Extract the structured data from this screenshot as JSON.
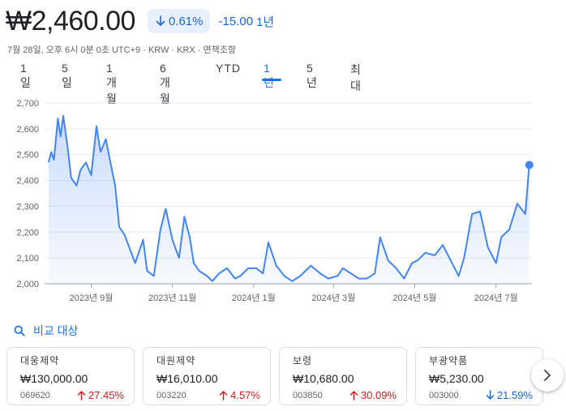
{
  "quote": {
    "price": "₩2,460.00",
    "change_percent": "0.61%",
    "change_direction": "down",
    "change_abs": "-15.00",
    "change_period": "1년",
    "meta": "7월 28일, 오후 6시 0분 0초 UTC+9 · KRW · KRX · 면책조항"
  },
  "tabs": [
    {
      "label": "1일",
      "active": false
    },
    {
      "label": "5일",
      "active": false
    },
    {
      "label": "1개월",
      "active": false
    },
    {
      "label": "6개월",
      "active": false
    },
    {
      "label": "YTD",
      "active": false
    },
    {
      "label": "1년",
      "active": true
    },
    {
      "label": "5년",
      "active": false
    },
    {
      "label": "최대",
      "active": false
    }
  ],
  "chart_data": {
    "type": "area",
    "ylim": [
      2000,
      2700
    ],
    "y_ticks": [
      "2,700",
      "2,600",
      "2,500",
      "2,400",
      "2,300",
      "2,200",
      "2,100",
      "2,000"
    ],
    "x_ticks": [
      "2023년 9월",
      "2023년 11월",
      "2024년 1월",
      "2024년 3월",
      "2024년 5월",
      "2024년 7월"
    ],
    "grid": true,
    "line_color": "#4285f4",
    "x": [
      "2023-07-31",
      "2023-08-02",
      "2023-08-04",
      "2023-08-07",
      "2023-08-09",
      "2023-08-11",
      "2023-08-14",
      "2023-08-17",
      "2023-08-21",
      "2023-08-24",
      "2023-08-28",
      "2023-09-01",
      "2023-09-05",
      "2023-09-08",
      "2023-09-12",
      "2023-09-15",
      "2023-09-19",
      "2023-09-22",
      "2023-09-26",
      "2023-10-04",
      "2023-10-10",
      "2023-10-13",
      "2023-10-18",
      "2023-10-23",
      "2023-10-27",
      "2023-11-01",
      "2023-11-06",
      "2023-11-10",
      "2023-11-14",
      "2023-11-17",
      "2023-11-21",
      "2023-11-27",
      "2023-12-01",
      "2023-12-06",
      "2023-12-12",
      "2023-12-18",
      "2023-12-22",
      "2023-12-28",
      "2024-01-03",
      "2024-01-08",
      "2024-01-12",
      "2024-01-18",
      "2024-01-24",
      "2024-01-30",
      "2024-02-05",
      "2024-02-13",
      "2024-02-20",
      "2024-02-26",
      "2024-03-04",
      "2024-03-08",
      "2024-03-14",
      "2024-03-20",
      "2024-03-26",
      "2024-04-01",
      "2024-04-05",
      "2024-04-11",
      "2024-04-17",
      "2024-04-23",
      "2024-04-29",
      "2024-05-03",
      "2024-05-09",
      "2024-05-16",
      "2024-05-22",
      "2024-05-28",
      "2024-06-03",
      "2024-06-07",
      "2024-06-13",
      "2024-06-19",
      "2024-06-25",
      "2024-07-01",
      "2024-07-05",
      "2024-07-11",
      "2024-07-17",
      "2024-07-23",
      "2024-07-26"
    ],
    "series": [
      {
        "values": [
          2470,
          2510,
          2480,
          2640,
          2570,
          2650,
          2540,
          2410,
          2380,
          2440,
          2470,
          2420,
          2610,
          2510,
          2560,
          2480,
          2380,
          2220,
          2190,
          2080,
          2170,
          2050,
          2030,
          2210,
          2290,
          2170,
          2100,
          2260,
          2180,
          2080,
          2050,
          2030,
          2010,
          2040,
          2060,
          2020,
          2030,
          2060,
          2060,
          2040,
          2160,
          2070,
          2030,
          2010,
          2030,
          2070,
          2040,
          2020,
          2030,
          2060,
          2040,
          2020,
          2020,
          2040,
          2180,
          2090,
          2060,
          2020,
          2080,
          2090,
          2120,
          2110,
          2150,
          2090,
          2030,
          2100,
          2270,
          2280,
          2140,
          2080,
          2180,
          2210,
          2310,
          2270,
          2460
        ]
      }
    ]
  },
  "compare": {
    "label": "비교 대상",
    "icon": "search-icon"
  },
  "cards": [
    {
      "name": "대웅제약",
      "price": "₩130,000.00",
      "ticker": "069620",
      "change": "27.45%",
      "direction": "up"
    },
    {
      "name": "대원제약",
      "price": "₩16,010.00",
      "ticker": "003220",
      "change": "4.57%",
      "direction": "up"
    },
    {
      "name": "보령",
      "price": "₩10,680.00",
      "ticker": "003850",
      "change": "30.09%",
      "direction": "up"
    },
    {
      "name": "부광약품",
      "price": "₩5,230.00",
      "ticker": "003000",
      "change": "21.59%",
      "direction": "down"
    }
  ],
  "colors": {
    "accent": "#1a73e8",
    "up": "#c5221f",
    "down": "#1967d2"
  }
}
